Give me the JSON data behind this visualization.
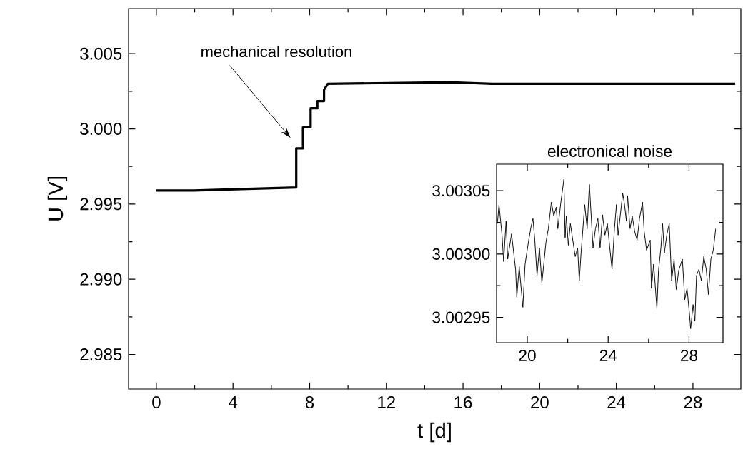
{
  "chart_data": [
    {
      "type": "line",
      "xlabel": "t [d]",
      "ylabel": "U [V]",
      "xlim": [
        -1.45,
        30.5
      ],
      "ylim": [
        2.9827,
        3.008
      ],
      "xticks": [
        0,
        4,
        8,
        12,
        16,
        20,
        24,
        28
      ],
      "yticks": [
        {
          "value": 2.985,
          "label": "2.985"
        },
        {
          "value": 2.99,
          "label": "2.990"
        },
        {
          "value": 2.995,
          "label": "2.995"
        },
        {
          "value": 3.0,
          "label": "3.000"
        },
        {
          "value": 3.005,
          "label": "3.005"
        }
      ],
      "x": [
        0,
        1.5,
        1.95,
        7.3,
        7.3,
        7.65,
        7.65,
        8.05,
        8.05,
        8.4,
        8.4,
        8.75,
        8.75,
        8.95,
        15.45,
        17.5,
        30.2
      ],
      "series": [
        {
          "color": "#000000",
          "values": [
            2.9959,
            2.9959,
            2.9959,
            2.9961,
            2.9987,
            2.9987,
            3.0001,
            3.0001,
            3.00137,
            3.00137,
            3.00185,
            3.00185,
            3.0026,
            3.003,
            3.0031,
            3.003,
            3.003
          ]
        }
      ],
      "annotations": [
        "mechanical resolution"
      ]
    },
    {
      "type": "line",
      "title": "electronical noise",
      "xlim": [
        18.48,
        29.68
      ],
      "ylim": [
        3.00293,
        3.003071
      ],
      "xticks": [
        20,
        24,
        28
      ],
      "yticks": [
        {
          "value": 3.00295,
          "label": "3.00295"
        },
        {
          "value": 3.003,
          "label": "3.00300"
        },
        {
          "value": 3.00305,
          "label": "3.00305"
        }
      ],
      "x": [
        18.52,
        18.6,
        18.75,
        18.83,
        18.95,
        19.03,
        19.22,
        19.42,
        19.48,
        19.6,
        19.78,
        19.89,
        20.07,
        20.19,
        20.28,
        20.37,
        20.48,
        20.6,
        20.72,
        20.92,
        21.04,
        21.19,
        21.31,
        21.43,
        21.51,
        21.66,
        21.81,
        21.87,
        21.93,
        22.03,
        22.13,
        22.37,
        22.49,
        22.57,
        22.66,
        22.84,
        22.96,
        23.07,
        23.16,
        23.25,
        23.37,
        23.49,
        23.6,
        23.72,
        23.84,
        23.96,
        24.08,
        24.19,
        24.31,
        24.41,
        24.49,
        24.72,
        24.81,
        24.9,
        24.96,
        25.08,
        25.19,
        25.31,
        25.43,
        25.55,
        25.7,
        25.78,
        25.9,
        26.08,
        26.14,
        26.25,
        26.41,
        26.49,
        26.61,
        26.69,
        26.78,
        26.9,
        27.02,
        27.14,
        27.26,
        27.37,
        27.49,
        27.67,
        27.79,
        27.9,
        28.02,
        28.08,
        28.2,
        28.29,
        28.37,
        28.49,
        28.61,
        28.73,
        28.85,
        28.96,
        29.08,
        29.2,
        29.32
      ],
      "series": [
        {
          "color": "#000000",
          "values": [
            3.003024,
            3.003039,
            3.003015,
            3.002994,
            3.003026,
            3.002996,
            3.003016,
            3.002988,
            3.002966,
            3.00299,
            3.002958,
            3.002992,
            3.003011,
            3.003022,
            3.003028,
            3.003011,
            3.002983,
            3.003005,
            3.002977,
            3.003009,
            3.00302,
            3.003041,
            3.00303,
            3.003037,
            3.00302,
            3.003041,
            3.003059,
            3.003013,
            3.00303,
            3.003007,
            3.003024,
            3.002998,
            3.003005,
            3.002979,
            3.003001,
            3.003039,
            3.00302,
            3.003055,
            3.00303,
            3.003005,
            3.00302,
            3.003028,
            3.003005,
            3.003031,
            3.003015,
            3.003024,
            3.003005,
            3.002988,
            3.00302,
            3.003039,
            3.003015,
            3.003048,
            3.003039,
            3.003026,
            3.003046,
            3.00302,
            3.00303,
            3.003018,
            3.003011,
            3.003028,
            3.003041,
            3.003018,
            3.003003,
            3.003011,
            3.002973,
            3.002992,
            3.002957,
            3.002987,
            3.003005,
            3.003024,
            3.003001,
            3.003015,
            3.003024,
            3.002979,
            3.002996,
            3.002972,
            3.002987,
            3.002996,
            3.002964,
            3.002973,
            3.002953,
            3.002941,
            3.00296,
            3.002947,
            3.002983,
            3.002988,
            3.002979,
            3.002998,
            3.002988,
            3.002968,
            3.002996,
            3.003003,
            3.00302
          ]
        }
      ]
    }
  ]
}
